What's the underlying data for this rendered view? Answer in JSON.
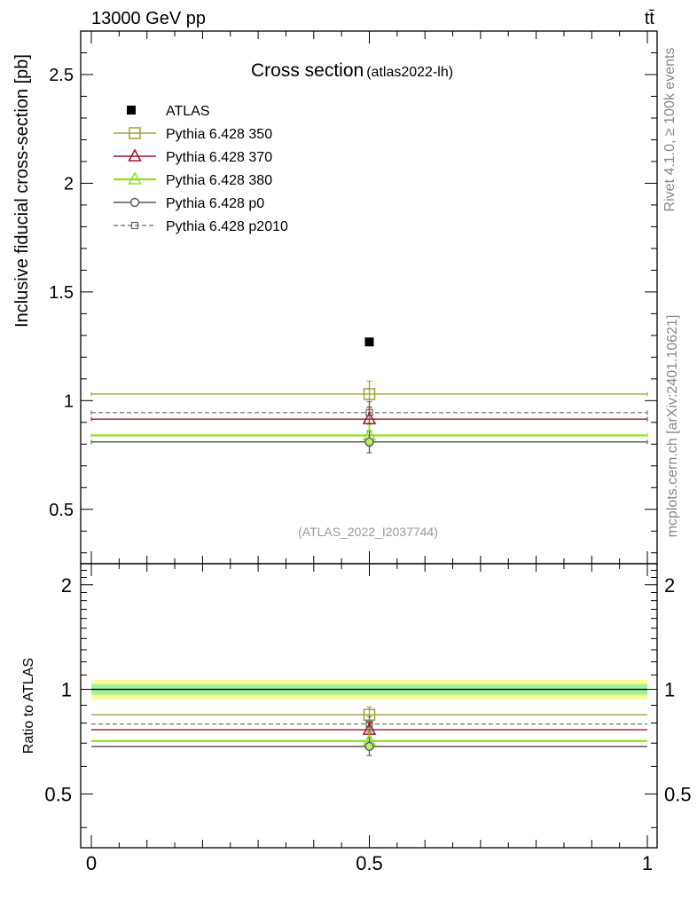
{
  "chart_data": {
    "type": "scatter",
    "header_left": "13000 GeV pp",
    "header_right": "tt̄",
    "title": "Cross section",
    "title_tag": "(atlas2022-lh)",
    "watermark": "(ATLAS_2022_I2037744)",
    "side_label_top": "Rivet 4.1.0, ≥ 100k events",
    "side_label_bottom": "mcplots.cern.ch [arXiv:2401.10621]",
    "ylabel": "Inclusive fiducial cross-section [pb]",
    "ratio_ylabel": "Ratio to ATLAS",
    "xlabel": "",
    "xlim": [
      0,
      1
    ],
    "ylim": [
      0.25,
      2.7
    ],
    "ratio_ylim": [
      0.35,
      2.3
    ],
    "x_ticks": [
      "0",
      "0.5",
      "1"
    ],
    "x_tick_values": [
      0,
      0.5,
      1
    ],
    "y_ticks": [
      "0.5",
      "1",
      "1.5",
      "2",
      "2.5"
    ],
    "y_tick_values": [
      0.5,
      1,
      1.5,
      2,
      2.5
    ],
    "ratio_ticks": [
      "0.5",
      "1",
      "2"
    ],
    "ratio_tick_values": [
      0.5,
      1,
      2
    ],
    "ratio_bands": {
      "inner": [
        0.965,
        1.035
      ],
      "outer": [
        0.935,
        1.065
      ]
    },
    "data": {
      "name": "ATLAS",
      "x": 0.5,
      "y": 1.27
    },
    "series": [
      {
        "name": "Pythia 6.428 350",
        "color": "#a0a03c",
        "marker": "square-open",
        "style": "solid",
        "width": 1.4,
        "y": 1.03,
        "err": 0.06,
        "ratio": 0.845,
        "ratio_err": 0.045
      },
      {
        "name": "Pythia 6.428 370",
        "color": "#a0122c",
        "marker": "triangle-open",
        "style": "solid",
        "width": 1.4,
        "y": 0.915,
        "err": 0.055,
        "ratio": 0.765,
        "ratio_err": 0.04
      },
      {
        "name": "Pythia 6.428 380",
        "color": "#8ee024",
        "marker": "triangle-open",
        "style": "solid",
        "width": 2.2,
        "y": 0.84,
        "err": 0.05,
        "ratio": 0.71,
        "ratio_err": 0.04
      },
      {
        "name": "Pythia 6.428 p0",
        "color": "#555555",
        "marker": "circle-open",
        "style": "solid",
        "width": 1.4,
        "y": 0.81,
        "err": 0.05,
        "ratio": 0.685,
        "ratio_err": 0.04
      },
      {
        "name": "Pythia 6.428 p2010",
        "color": "#666666",
        "marker": "square-small",
        "style": "dashed",
        "width": 1.2,
        "y": 0.945,
        "err": 0.05,
        "ratio": 0.795,
        "ratio_err": 0.04
      }
    ]
  }
}
